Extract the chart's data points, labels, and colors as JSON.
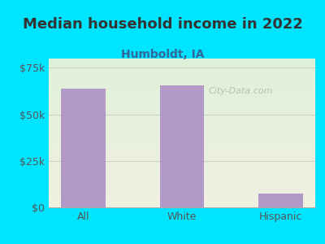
{
  "title": "Median household income in 2022",
  "subtitle": "Humboldt, IA",
  "categories": [
    "All",
    "White",
    "Hispanic"
  ],
  "values": [
    64000,
    65500,
    7500
  ],
  "bar_color": "#b399c8",
  "background_outer": "#00e5ff",
  "background_inner_top": "#e8f5e9",
  "background_inner_bottom": "#f5f5e8",
  "title_color": "#333333",
  "subtitle_color": "#336699",
  "tick_color": "#555555",
  "ylim": [
    0,
    80000
  ],
  "yticks": [
    0,
    25000,
    50000,
    75000
  ],
  "ytick_labels": [
    "$0",
    "$25k",
    "$50k",
    "$75k"
  ],
  "title_fontsize": 13,
  "subtitle_fontsize": 10,
  "watermark": "City-Data.com"
}
